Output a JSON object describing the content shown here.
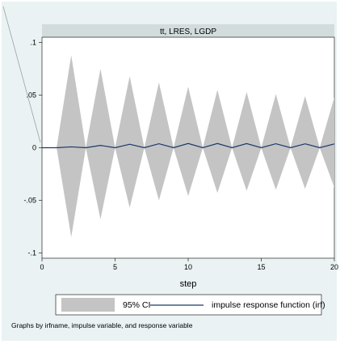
{
  "chart_data": {
    "type": "area",
    "title": "tt, LRES, LGDP",
    "xlabel": "step",
    "ylabel": "",
    "xlim": [
      0,
      20
    ],
    "ylim": [
      -0.105,
      0.105
    ],
    "x_ticks": [
      0,
      5,
      10,
      15,
      20
    ],
    "y_ticks": [
      0.1,
      0.05,
      0,
      -0.05,
      -0.1
    ],
    "y_tick_labels": [
      ".1",
      ".05",
      "0",
      "-.05",
      "-.1"
    ],
    "x": [
      0,
      1,
      2,
      3,
      4,
      5,
      6,
      7,
      8,
      9,
      10,
      11,
      12,
      13,
      14,
      15,
      16,
      17,
      18,
      19,
      20
    ],
    "series": [
      {
        "name": "95% CI",
        "kind": "band",
        "color": "#c4c4c4",
        "upper": [
          0,
          0,
          0.088,
          0,
          0.075,
          0,
          0.068,
          0,
          0.062,
          0,
          0.058,
          0,
          0.055,
          0,
          0.053,
          0,
          0.051,
          0,
          0.049,
          0,
          0.048
        ],
        "lower": [
          0,
          0,
          -0.085,
          0,
          -0.068,
          0,
          -0.057,
          0,
          -0.05,
          0,
          -0.046,
          0,
          -0.043,
          0,
          -0.041,
          0,
          -0.04,
          0,
          -0.039,
          0,
          -0.038
        ]
      },
      {
        "name": "impulse response function (irf)",
        "kind": "line",
        "color": "#1a3a6b",
        "values": [
          0,
          0,
          0.0008,
          0,
          0.0022,
          0,
          0.0033,
          0,
          0.0038,
          0,
          0.004,
          0,
          0.004,
          0,
          0.0039,
          0,
          0.0038,
          0,
          0.0037,
          0,
          0.0036
        ]
      }
    ],
    "legend_position": "bottom",
    "note": "Graphs by irfname, impulse variable, and response variable",
    "grid": false
  }
}
